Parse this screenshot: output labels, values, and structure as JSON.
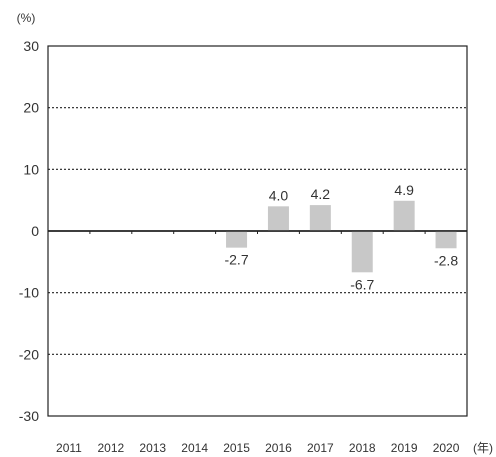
{
  "chart_data": {
    "type": "bar",
    "title": "",
    "ylabel": "(%)",
    "xlabel": "",
    "x_unit": "(年)",
    "categories": [
      "2011",
      "2012",
      "2013",
      "2014",
      "2015",
      "2016",
      "2017",
      "2018",
      "2019",
      "2020"
    ],
    "series": [
      {
        "values": [
          null,
          null,
          null,
          null,
          -2.7,
          4.0,
          4.2,
          -6.7,
          4.9,
          -2.8
        ],
        "data_labels": [
          "",
          "",
          "",
          "",
          "-2.7",
          "4.0",
          "4.2",
          "-6.7",
          "4.9",
          "-2.8"
        ],
        "color": "#c8c8c8"
      }
    ],
    "y_ticks": [
      "30",
      "20",
      "10",
      "0",
      "-10",
      "-20",
      "-30"
    ],
    "ylim": [
      -30,
      30
    ],
    "grid": "dotted horizontal",
    "legend": "none"
  }
}
